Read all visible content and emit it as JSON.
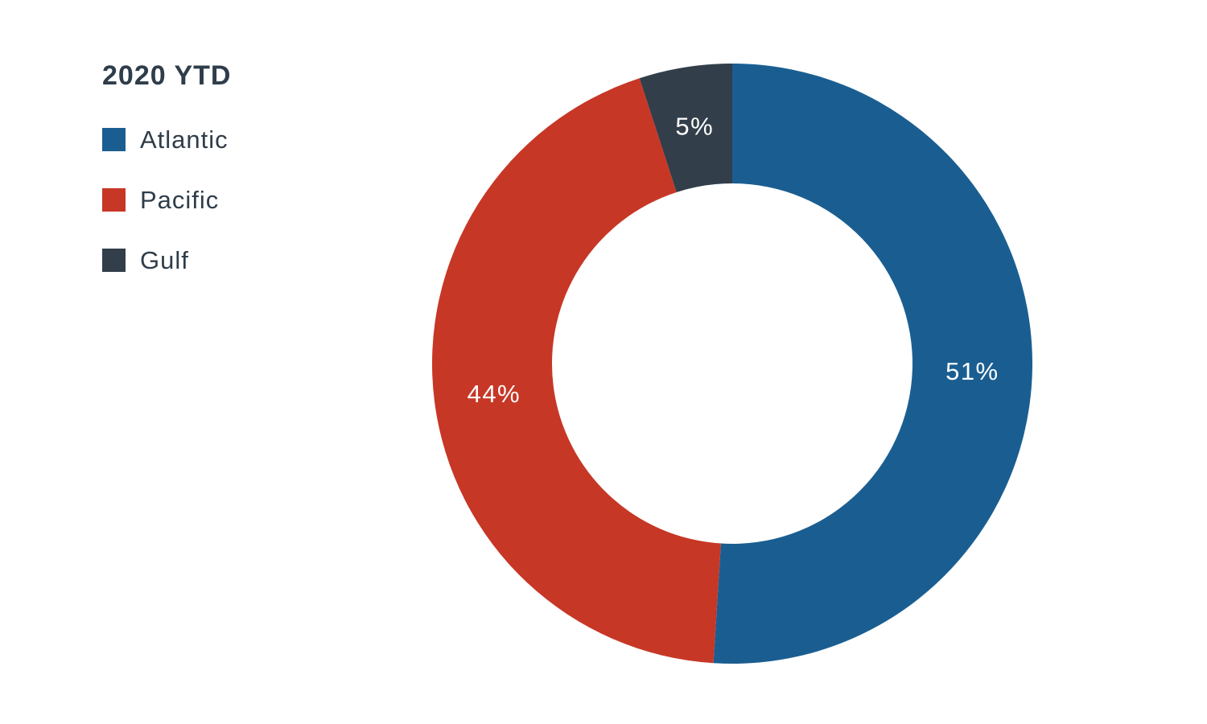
{
  "chart_data": {
    "type": "pie",
    "variant": "donut",
    "legend_title": "2020 YTD",
    "legend_position": "top-left",
    "categories": [
      "Atlantic",
      "Pacific",
      "Gulf"
    ],
    "values": [
      51,
      44,
      5
    ],
    "labels": [
      "51%",
      "44%",
      "5%"
    ],
    "colors": [
      "#1a5e91",
      "#c73726",
      "#323e49"
    ],
    "start_angle_deg": 0,
    "direction": "clockwise"
  }
}
